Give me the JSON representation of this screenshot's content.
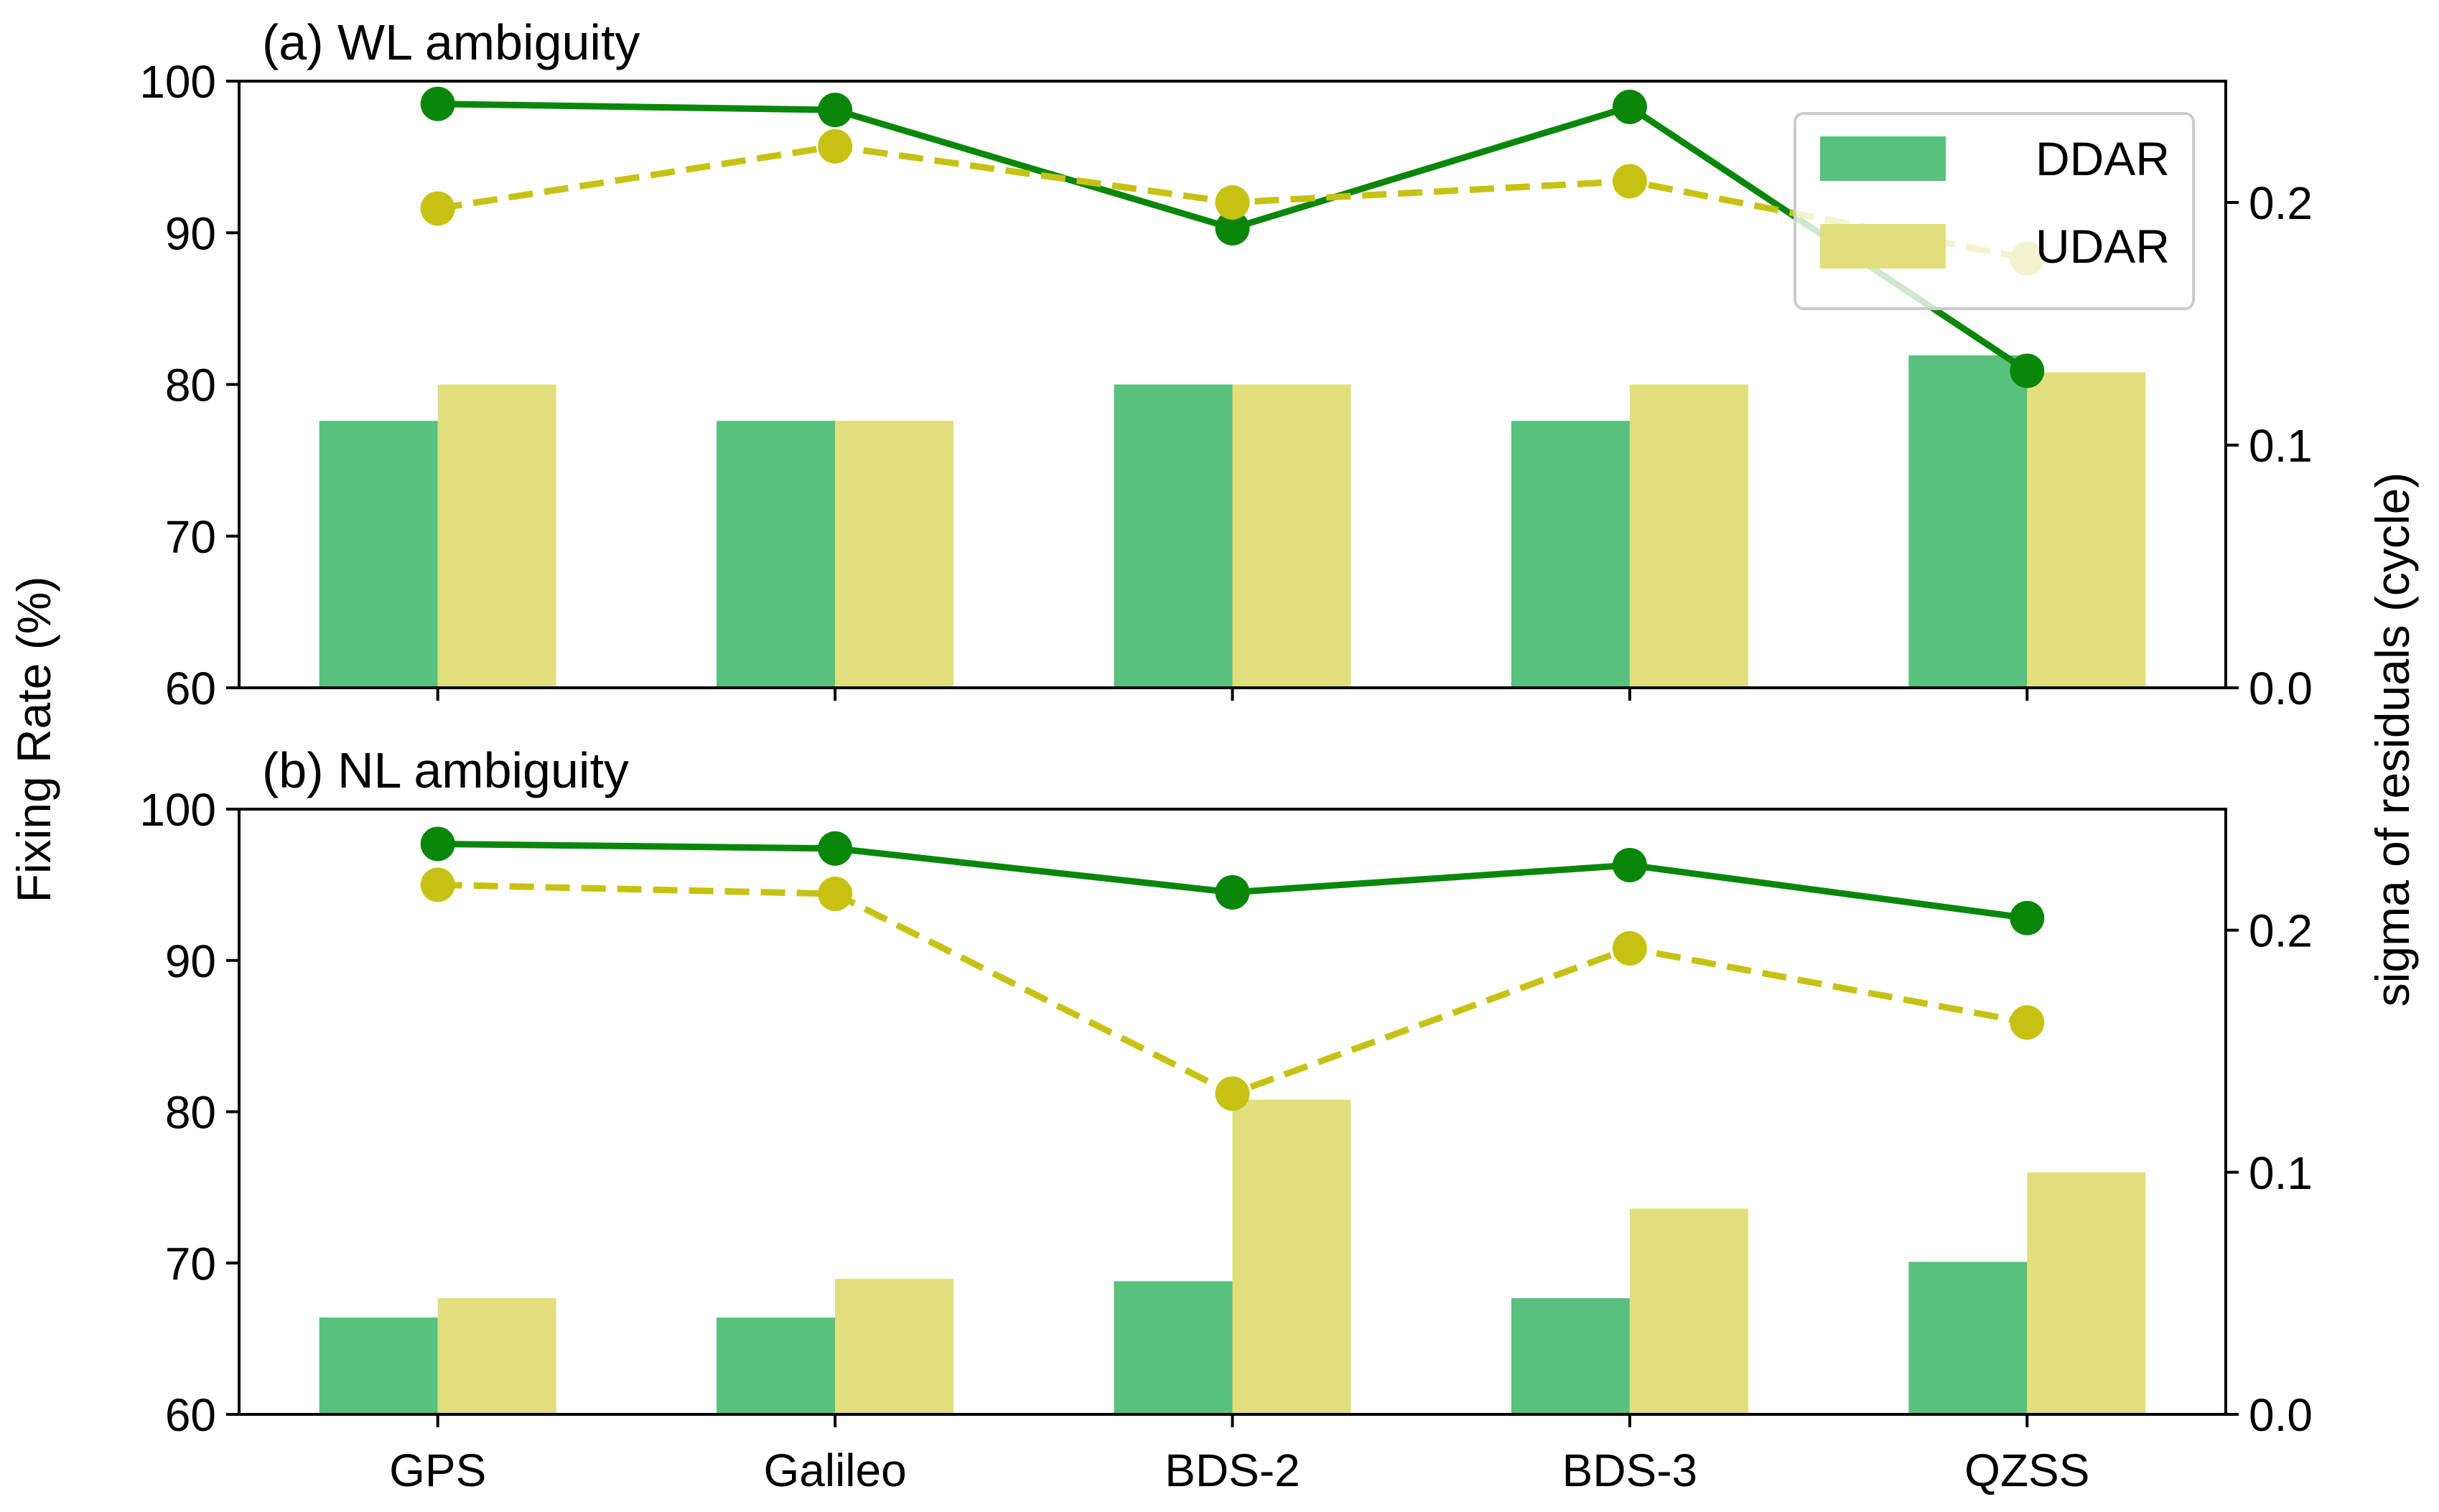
{
  "chart_data": {
    "type": "bar",
    "categories": [
      "GPS",
      "Galileo",
      "BDS-2",
      "BDS-3",
      "QZSS"
    ],
    "ylabel": "Fixing Rate (%)",
    "y2label": "sigma of residuals (cycle)",
    "ylim": [
      60,
      100
    ],
    "y2lim": [
      0.0,
      0.25
    ],
    "yticks": [
      "60",
      "70",
      "80",
      "90",
      "100"
    ],
    "y2ticks": [
      "0.0",
      "0.1",
      "0.2"
    ],
    "legend": {
      "position": "top-right",
      "entries": [
        "DDAR",
        "UDAR"
      ]
    },
    "colors": {
      "ddar_bar": "#57c17d",
      "udar_bar": "#e0df7c",
      "ddar_line": "#0a870a",
      "udar_line": "#c6c214"
    },
    "panels": [
      {
        "title": "(a) WL ambiguity",
        "series": [
          {
            "name": "DDAR",
            "type": "bar",
            "axis": "right",
            "values": [
              0.11,
              0.11,
              0.125,
              0.11,
              0.137
            ]
          },
          {
            "name": "UDAR",
            "type": "bar",
            "axis": "right",
            "values": [
              0.125,
              0.11,
              0.125,
              0.125,
              0.13
            ]
          },
          {
            "name": "DDAR",
            "type": "line",
            "axis": "left",
            "style": "solid",
            "values": [
              98.5,
              98.1,
              90.3,
              98.3,
              80.9
            ]
          },
          {
            "name": "UDAR",
            "type": "line",
            "axis": "left",
            "style": "dashed",
            "values": [
              91.6,
              95.7,
              92.0,
              93.4,
              88.3
            ]
          }
        ]
      },
      {
        "title": "(b) NL ambiguity",
        "series": [
          {
            "name": "DDAR",
            "type": "bar",
            "axis": "right",
            "values": [
              0.04,
              0.04,
              0.055,
              0.048,
              0.063
            ]
          },
          {
            "name": "UDAR",
            "type": "bar",
            "axis": "right",
            "values": [
              0.048,
              0.056,
              0.13,
              0.085,
              0.1
            ]
          },
          {
            "name": "DDAR",
            "type": "line",
            "axis": "left",
            "style": "solid",
            "values": [
              97.7,
              97.4,
              94.5,
              96.3,
              92.8
            ]
          },
          {
            "name": "UDAR",
            "type": "line",
            "axis": "left",
            "style": "dashed",
            "values": [
              95.0,
              94.4,
              81.2,
              90.8,
              85.9
            ]
          }
        ]
      }
    ]
  }
}
